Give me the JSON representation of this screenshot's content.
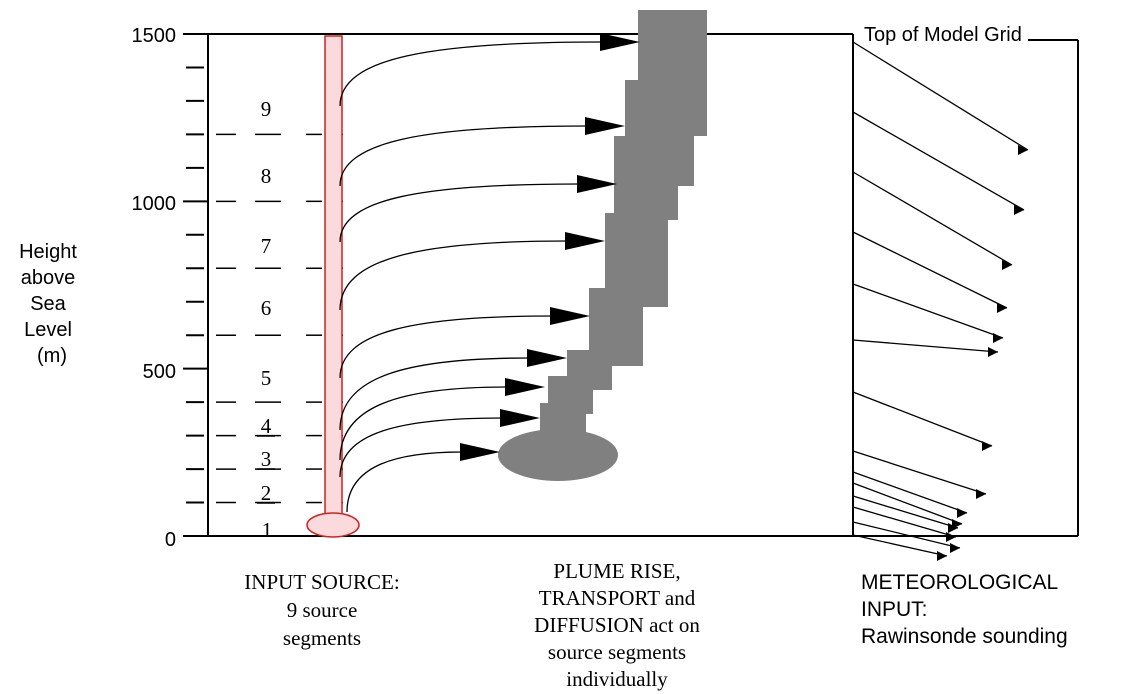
{
  "axis": {
    "label_lines": [
      "Height",
      "above",
      "Sea",
      "Level",
      "(m)"
    ],
    "ticks": [
      {
        "value": 1500,
        "label": "1500"
      },
      {
        "value": 1000,
        "label": "1000"
      },
      {
        "value": 500,
        "label": "500"
      },
      {
        "value": 0,
        "label": "0"
      }
    ]
  },
  "segments": {
    "labels": [
      "1",
      "2",
      "3",
      "4",
      "5",
      "6",
      "7",
      "8",
      "9"
    ],
    "boundaries_m": [
      100,
      200,
      300,
      400,
      600,
      800,
      1000,
      1200
    ]
  },
  "model_grid": {
    "top_label": "Top of Model Grid"
  },
  "captions": {
    "input": [
      "INPUT SOURCE:",
      "9 source",
      "segments"
    ],
    "plume": [
      "PLUME RISE,",
      "TRANSPORT and",
      "DIFFUSION act on",
      "source segments",
      "individually"
    ],
    "met": [
      "METEOROLOGICAL",
      "INPUT:",
      "Rawinsonde sounding"
    ]
  },
  "colors": {
    "source_fill": "#fadadd",
    "source_stroke": "#cc2222",
    "plume": "#808080",
    "line": "#000000"
  }
}
